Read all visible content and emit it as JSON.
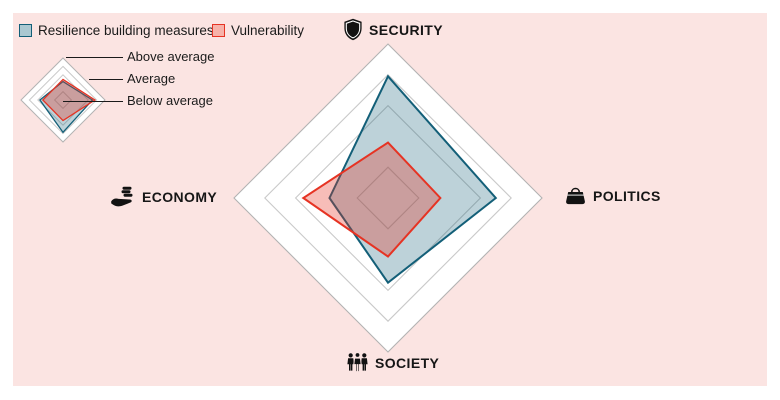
{
  "panel": {
    "background": "#FBE4E2"
  },
  "legend": {
    "items": [
      {
        "label": "Resilience building measures",
        "fill": "#ABC8D1",
        "border": "#135F78"
      },
      {
        "label": "Vulnerability",
        "fill": "#F7B2A9",
        "border": "#E63323"
      }
    ]
  },
  "legend_key": {
    "labels": [
      "Above average",
      "Average",
      "Below average"
    ]
  },
  "chart_data": {
    "type": "radar",
    "title": "",
    "axes": [
      {
        "label": "SECURITY",
        "icon": "shield-icon",
        "position": "top"
      },
      {
        "label": "POLITICS",
        "icon": "briefcase-icon",
        "position": "right"
      },
      {
        "label": "SOCIETY",
        "icon": "people-icon",
        "position": "bottom"
      },
      {
        "label": "ECONOMY",
        "icon": "hand-coins-icon",
        "position": "left"
      }
    ],
    "scale": {
      "rings": [
        1.0,
        0.8,
        0.6,
        0.2
      ],
      "ring_meanings": {
        "outer": "Above average",
        "middle": "Average",
        "inner": "Below average"
      }
    },
    "grid": {
      "outer_stroke": "#b3b3b3",
      "inner_stroke": "#c9c9c9",
      "area_fill": "#ffffff"
    },
    "series": [
      {
        "name": "Resilience building measures",
        "stroke": "#135F78",
        "fill": "rgba(19,95,120,0.28)",
        "values": [
          0.79,
          0.7,
          0.55,
          0.38
        ]
      },
      {
        "name": "Vulnerability",
        "stroke": "#E63323",
        "fill": "rgba(230,50,35,0.32)",
        "values": [
          0.36,
          0.34,
          0.38,
          0.55
        ]
      }
    ],
    "legend_key_mini_series": [
      {
        "name": "Resilience building measures",
        "values": [
          0.44,
          0.7,
          0.77,
          0.55
        ]
      },
      {
        "name": "Vulnerability",
        "values": [
          0.49,
          0.76,
          0.49,
          0.48
        ]
      }
    ]
  }
}
